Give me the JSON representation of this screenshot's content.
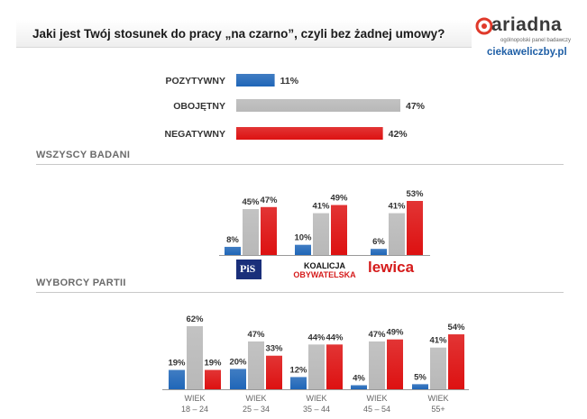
{
  "header": {
    "title": "Jaki jest Twój stosunek do pracy „na czarno”, czyli bez żadnej umowy?",
    "logo_text": "ariadna",
    "logo_subtitle": "ogólnopolski panel badawczy",
    "url": "ciekaweliczby.pl"
  },
  "sections": {
    "all": "WSZYSCY BADANI",
    "parties": "WYBORCY PARTII"
  },
  "colors": {
    "positive": "#1f66b8",
    "neutral": "#b8b8b8",
    "negative": "#dd1111"
  },
  "party_logos": {
    "pis": "PiS",
    "ko_line1": "KOALICJA",
    "ko_line2": "OBYWATELSKA",
    "lewica": "lewica"
  },
  "chart_data": [
    {
      "type": "bar",
      "orientation": "horizontal",
      "title": "WSZYSCY BADANI",
      "categories": [
        "POZYTYWNY",
        "OBOJĘTNY",
        "NEGATYWNY"
      ],
      "values": [
        11,
        47,
        42
      ],
      "labels": [
        "11%",
        "47%",
        "42%"
      ],
      "xlim": [
        0,
        50
      ]
    },
    {
      "type": "bar",
      "title": "WYBORCY PARTII",
      "categories": [
        "PiS",
        "KO",
        "Lewica"
      ],
      "series": [
        {
          "name": "POZYTYWNY",
          "values": [
            8,
            10,
            6
          ],
          "labels": [
            "8%",
            "10%",
            "6%"
          ]
        },
        {
          "name": "OBOJĘTNY",
          "values": [
            45,
            41,
            41
          ],
          "labels": [
            "45%",
            "41%",
            "41%"
          ]
        },
        {
          "name": "NEGATYWNY",
          "values": [
            47,
            49,
            53
          ],
          "labels": [
            "47%",
            "49%",
            "53%"
          ]
        }
      ],
      "ylim": [
        0,
        55
      ]
    },
    {
      "type": "bar",
      "title": "WIEK",
      "categories": [
        "WIEK 18 – 24",
        "WIEK 25 – 34",
        "WIEK 35 – 44",
        "WIEK 45 – 54",
        "WIEK 55+"
      ],
      "category_lines": [
        [
          "WIEK",
          "18 – 24"
        ],
        [
          "WIEK",
          "25 – 34"
        ],
        [
          "WIEK",
          "35 – 44"
        ],
        [
          "WIEK",
          "45 – 54"
        ],
        [
          "WIEK",
          "55+"
        ]
      ],
      "series": [
        {
          "name": "POZYTYWNY",
          "values": [
            19,
            20,
            12,
            4,
            5
          ],
          "labels": [
            "19%",
            "20%",
            "12%",
            "4%",
            "5%"
          ]
        },
        {
          "name": "OBOJĘTNY",
          "values": [
            62,
            47,
            44,
            47,
            41
          ],
          "labels": [
            "62%",
            "47%",
            "44%",
            "47%",
            "41%"
          ]
        },
        {
          "name": "NEGATYWNY",
          "values": [
            19,
            33,
            44,
            49,
            54
          ],
          "labels": [
            "19%",
            "33%",
            "44%",
            "49%",
            "54%"
          ]
        }
      ],
      "ylim": [
        0,
        65
      ]
    }
  ]
}
